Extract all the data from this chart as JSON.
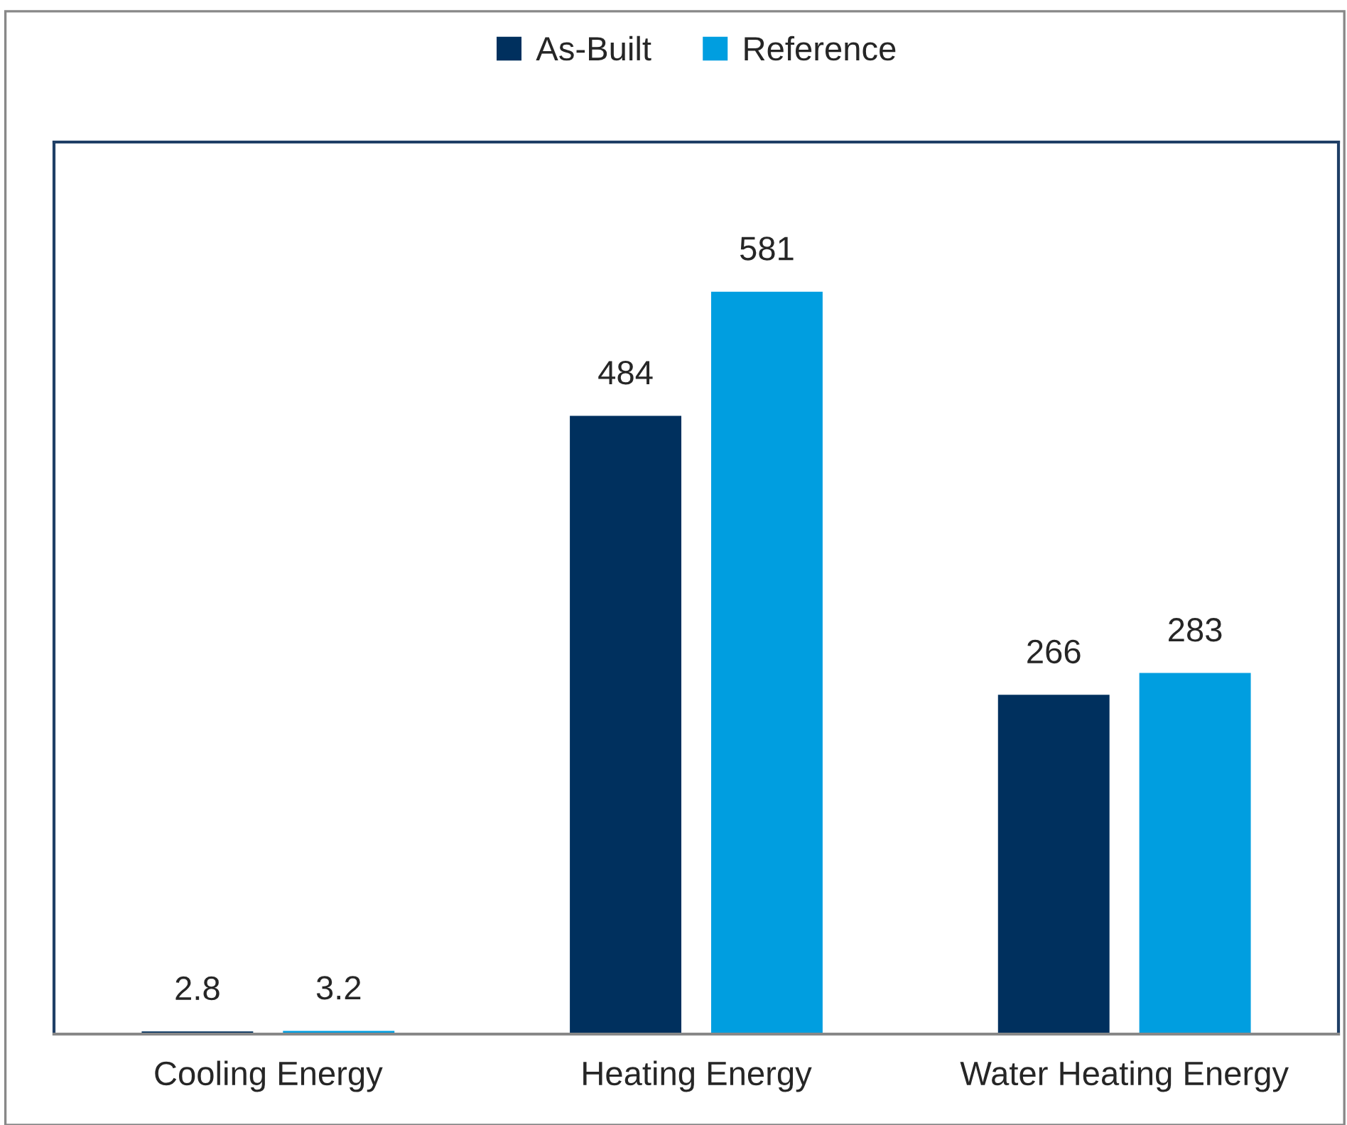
{
  "chart_data": {
    "type": "bar",
    "categories": [
      "Cooling Energy",
      "Heating Energy",
      "Water Heating Energy"
    ],
    "series": [
      {
        "name": "As-Built",
        "color": "#00305e",
        "values": [
          2.8,
          484,
          266
        ]
      },
      {
        "name": "Reference",
        "color": "#009ee0",
        "values": [
          3.2,
          581,
          283
        ]
      }
    ],
    "data_labels": true,
    "legend": "top",
    "grid": false,
    "tick_labels": "x"
  }
}
